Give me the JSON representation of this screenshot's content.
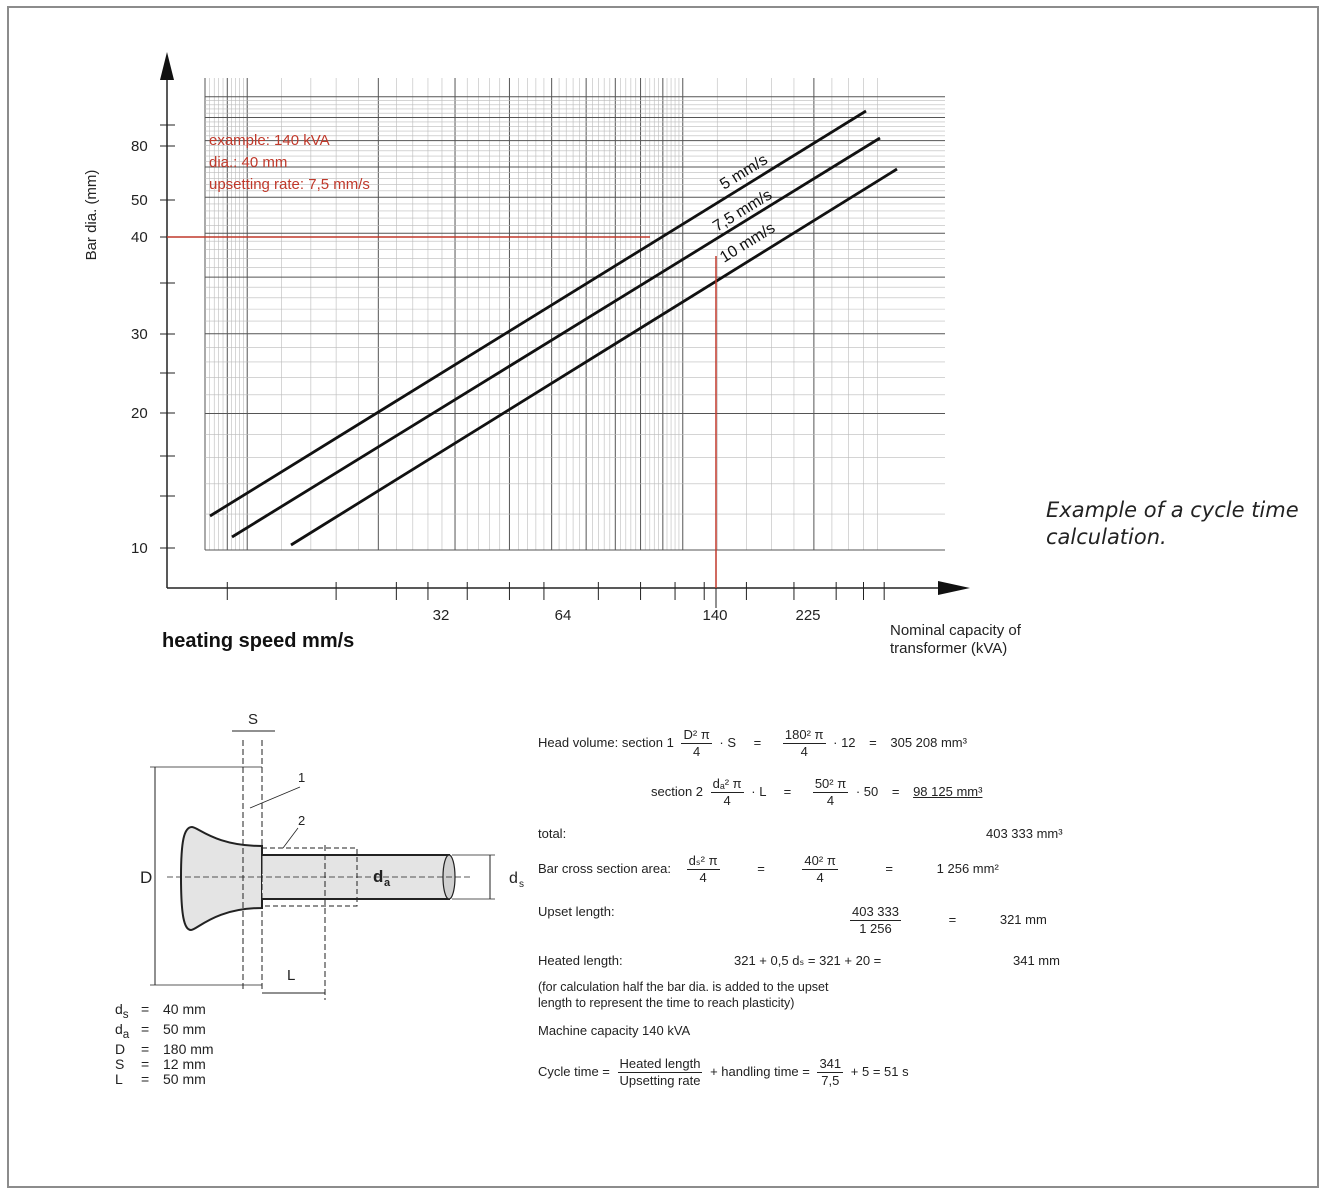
{
  "chart_data": {
    "type": "line",
    "x_scale": "log",
    "y_scale": "log",
    "xlabel": "Nominal capacity of transformer (kVA)",
    "ylabel": "Bar dia. (mm)",
    "x_ticks": [
      32,
      64,
      140,
      225
    ],
    "y_ticks": [
      10,
      20,
      30,
      40,
      50,
      80
    ],
    "xlim": [
      8,
      400
    ],
    "ylim": [
      10,
      110
    ],
    "grid": true,
    "series": [
      {
        "name": "5 mm/s",
        "x": [
          9.2,
          290
        ],
        "y": [
          12.0,
          93
        ]
      },
      {
        "name": "7,5 mm/s",
        "x": [
          10.5,
          320
        ],
        "y": [
          11.0,
          84
        ]
      },
      {
        "name": "10 mm/s",
        "x": [
          15,
          350
        ],
        "y": [
          10.5,
          72
        ]
      }
    ],
    "annotations": {
      "lines": [
        "example: 140 kVA",
        "dia.: 40 mm",
        "upsetting rate: 7,5 mm/s"
      ],
      "example_x": 140,
      "example_y": 40,
      "color": "#c0392b"
    }
  },
  "caption": "Example of a cycle time calculation.",
  "heating_label": "heating speed mm/s",
  "xaxis_title_line1": "Nominal capacity of",
  "xaxis_title_line2": "transformer (kVA)",
  "diagram": {
    "labels": {
      "S": "S",
      "D": "D",
      "L": "L",
      "da": "d",
      "da_sub": "a",
      "ds": "d",
      "ds_sub": "s",
      "one": "1",
      "two": "2"
    },
    "dims": [
      {
        "sym": "ds",
        "sub": "s",
        "val": "40 mm"
      },
      {
        "sym": "da",
        "sub": "a",
        "val": "50 mm"
      },
      {
        "sym": "D",
        "sub": "",
        "val": "180 mm"
      },
      {
        "sym": "S",
        "sub": "",
        "val": "12 mm"
      },
      {
        "sym": "L",
        "sub": "",
        "val": "50 mm"
      }
    ]
  },
  "calc": {
    "head_volume": "Head volume: section 1",
    "sec1_num": "D² π",
    "sec1_den": "4",
    "sec1_mul": "· S",
    "sec1_num2": "180² π",
    "sec1_den2": "4",
    "sec1_mul2": "· 12",
    "sec1_res": "305 208 mm³",
    "section2": "section 2",
    "sec2_num": "dₐ² π",
    "sec2_den": "4",
    "sec2_mul": "· L",
    "sec2_num2": "50² π",
    "sec2_den2": "4",
    "sec2_mul2": "· 50",
    "sec2_res": "98 125 mm³",
    "total": "total:",
    "total_res": "403 333 mm³",
    "bar_area": "Bar cross section area:",
    "bar_num": "dₛ² π",
    "bar_den": "4",
    "bar_num2": "40² π",
    "bar_den2": "4",
    "bar_res": "1 256 mm²",
    "upset_len": "Upset length:",
    "upset_num": "403 333",
    "upset_den": "1 256",
    "upset_res": "321 mm",
    "heated_len": "Heated length:",
    "heated_expr": "321 + 0,5 dₛ = 321 + 20 =",
    "heated_res": "341 mm",
    "note1": "(for calculation half the bar dia. is added to the upset",
    "note2": "length to represent the time to reach plasticity)",
    "machine": "Machine capacity 140 kVA",
    "cycle": "Cycle time =",
    "cycle_num": "Heated length",
    "cycle_den": "Upsetting rate",
    "cycle_mid": "+ handling time =",
    "cycle_num2": "341",
    "cycle_den2": "7,5",
    "cycle_end": "+ 5 = 51 s",
    "eq": "=",
    "eq2": "="
  }
}
